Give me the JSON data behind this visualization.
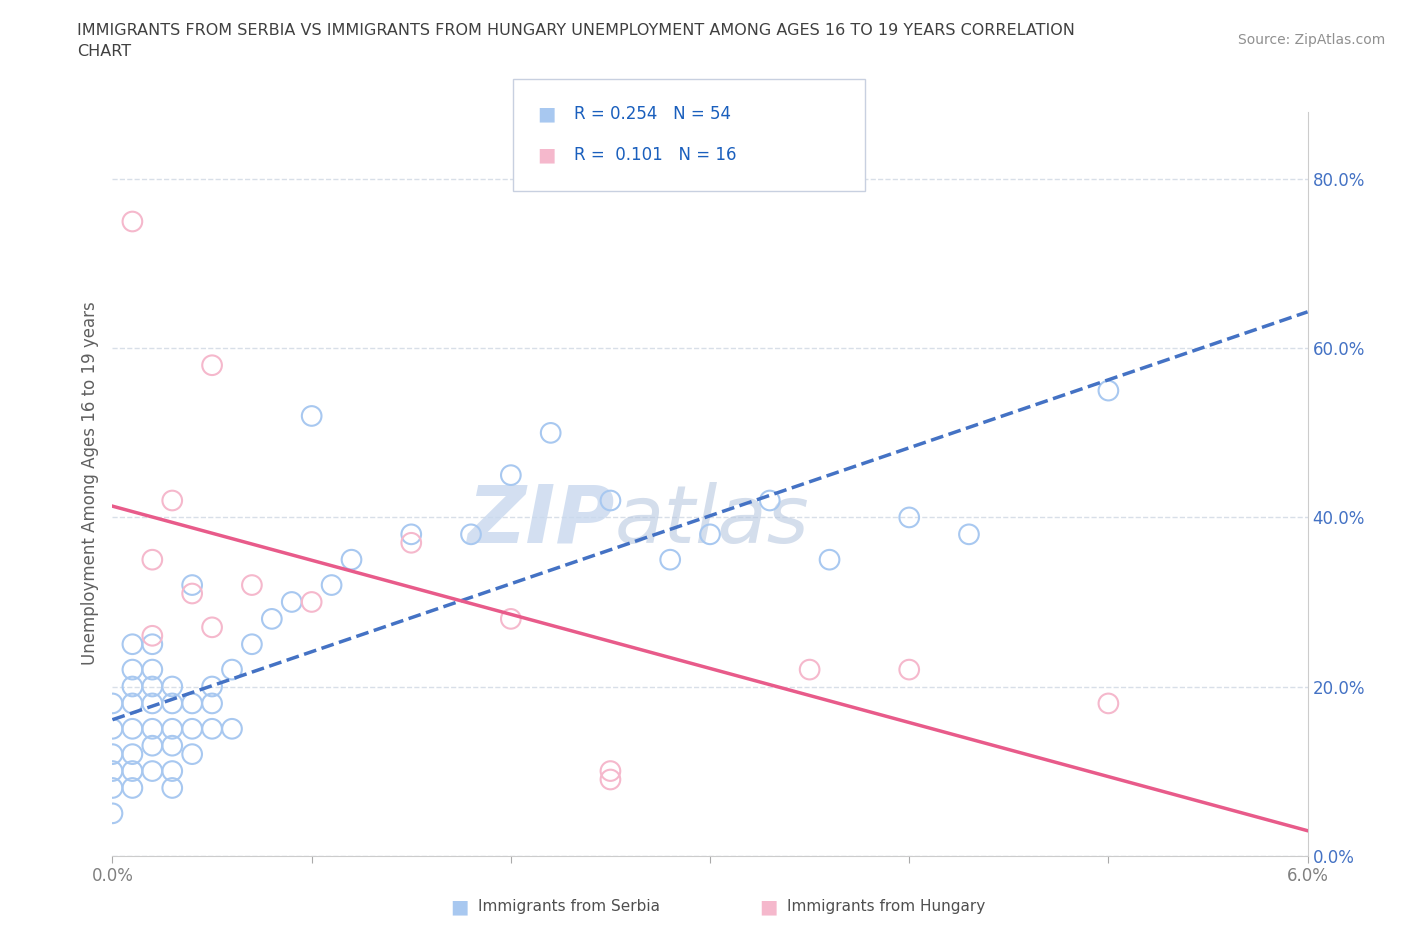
{
  "title_line1": "IMMIGRANTS FROM SERBIA VS IMMIGRANTS FROM HUNGARY UNEMPLOYMENT AMONG AGES 16 TO 19 YEARS CORRELATION",
  "title_line2": "CHART",
  "source_text": "Source: ZipAtlas.com",
  "ylabel": "Unemployment Among Ages 16 to 19 years",
  "serbia_color": "#a8c8f0",
  "hungary_color": "#f5b8cc",
  "serbia_line_color": "#4472c4",
  "hungary_line_color": "#e85b8a",
  "watermark_color": "#d0dff0",
  "R_serbia": 0.254,
  "N_serbia": 54,
  "R_hungary": 0.101,
  "N_hungary": 16,
  "xlim": [
    0,
    0.06
  ],
  "ylim": [
    0,
    0.88
  ],
  "background_color": "#ffffff",
  "grid_color": "#d8dfe8",
  "title_color": "#404040",
  "axis_label_color": "#606060",
  "tick_label_color": "#808080",
  "legend_text_color": "#1a5fbd",
  "source_color": "#909090",
  "serbia_x": [
    0.0,
    0.0,
    0.0,
    0.0,
    0.0,
    0.0,
    0.001,
    0.001,
    0.001,
    0.001,
    0.001,
    0.001,
    0.001,
    0.001,
    0.002,
    0.002,
    0.002,
    0.002,
    0.002,
    0.002,
    0.002,
    0.003,
    0.003,
    0.003,
    0.003,
    0.003,
    0.003,
    0.004,
    0.004,
    0.004,
    0.004,
    0.005,
    0.005,
    0.005,
    0.006,
    0.006,
    0.007,
    0.008,
    0.009,
    0.01,
    0.011,
    0.012,
    0.015,
    0.018,
    0.02,
    0.022,
    0.025,
    0.028,
    0.03,
    0.033,
    0.036,
    0.04,
    0.043,
    0.05
  ],
  "serbia_y": [
    0.15,
    0.18,
    0.12,
    0.08,
    0.05,
    0.1,
    0.2,
    0.22,
    0.1,
    0.15,
    0.18,
    0.25,
    0.08,
    0.12,
    0.1,
    0.13,
    0.15,
    0.18,
    0.2,
    0.22,
    0.25,
    0.1,
    0.13,
    0.15,
    0.18,
    0.2,
    0.08,
    0.12,
    0.15,
    0.18,
    0.32,
    0.15,
    0.18,
    0.2,
    0.15,
    0.22,
    0.25,
    0.28,
    0.3,
    0.52,
    0.32,
    0.35,
    0.38,
    0.38,
    0.45,
    0.5,
    0.42,
    0.35,
    0.38,
    0.42,
    0.35,
    0.4,
    0.38,
    0.55
  ],
  "hungary_x": [
    0.001,
    0.002,
    0.002,
    0.003,
    0.004,
    0.005,
    0.005,
    0.007,
    0.01,
    0.015,
    0.02,
    0.025,
    0.025,
    0.035,
    0.04,
    0.05
  ],
  "hungary_y": [
    0.75,
    0.35,
    0.26,
    0.42,
    0.31,
    0.27,
    0.58,
    0.32,
    0.3,
    0.37,
    0.28,
    0.09,
    0.1,
    0.22,
    0.22,
    0.18
  ]
}
